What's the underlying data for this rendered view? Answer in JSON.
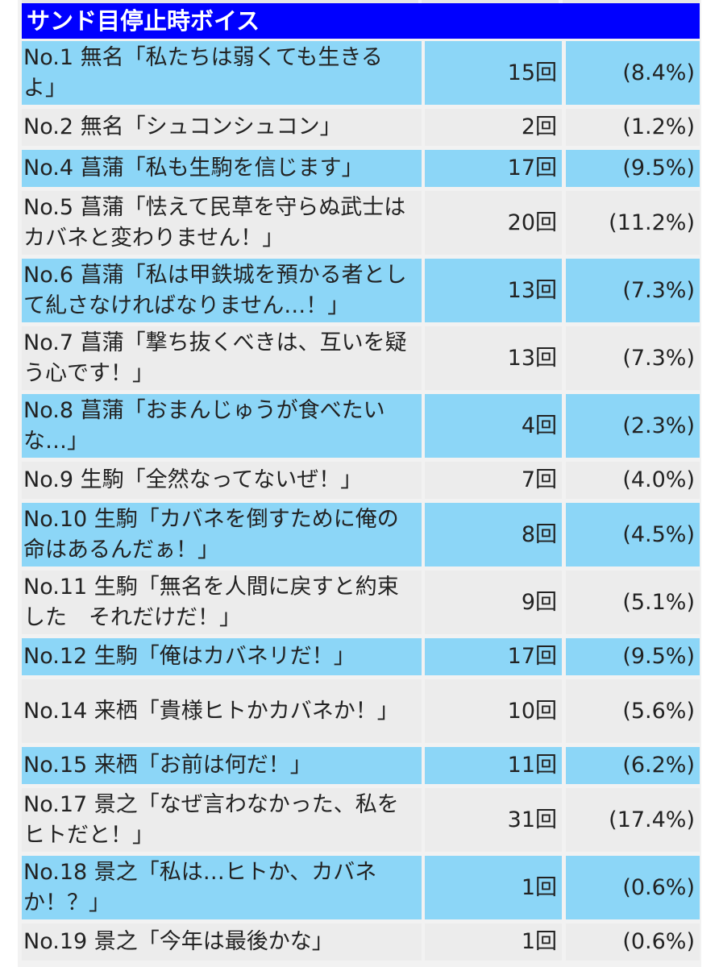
{
  "table": {
    "header": "サンド目停止時ボイス",
    "rows": [
      {
        "label": "No.1 無名「私たちは弱くても生きるよ」",
        "count": "15回",
        "pct": "(8.4%)",
        "lines": 2,
        "color": "#8cd6f7"
      },
      {
        "label": "No.2 無名「シュコンシュコン」",
        "count": "2回",
        "pct": "(1.2%)",
        "lines": 1,
        "color": "#ececec"
      },
      {
        "label": "No.4 菖蒲「私も生駒を信じます」",
        "count": "17回",
        "pct": "(9.5%)",
        "lines": 1,
        "color": "#8cd6f7"
      },
      {
        "label": "No.5 菖蒲「怯えて民草を守らぬ武士はカバネと変わりません！」",
        "count": "20回",
        "pct": "(11.2%)",
        "lines": 2,
        "color": "#ececec"
      },
      {
        "label": "No.6 菖蒲「私は甲鉄城を預かる者として糺さなければなりません…！」",
        "count": "13回",
        "pct": "(7.3%)",
        "lines": 2,
        "color": "#8cd6f7"
      },
      {
        "label": "No.7 菖蒲「撃ち抜くべきは、互いを疑う心です！」",
        "count": "13回",
        "pct": "(7.3%)",
        "lines": 2,
        "color": "#ececec"
      },
      {
        "label": "No.8 菖蒲「おまんじゅうが食べたいな…」",
        "count": "4回",
        "pct": "(2.3%)",
        "lines": 2,
        "color": "#8cd6f7"
      },
      {
        "label": "No.9 生駒「全然なってないぜ！」",
        "count": "7回",
        "pct": "(4.0%)",
        "lines": 1,
        "color": "#ececec"
      },
      {
        "label": "No.10 生駒「カバネを倒すために俺の命はあるんだぁ！」",
        "count": "8回",
        "pct": "(4.5%)",
        "lines": 2,
        "color": "#8cd6f7"
      },
      {
        "label": "No.11 生駒「無名を人間に戻すと約束した　それだけだ！」",
        "count": "9回",
        "pct": "(5.1%)",
        "lines": 2,
        "color": "#ececec"
      },
      {
        "label": "No.12 生駒「俺はカバネリだ！」",
        "count": "17回",
        "pct": "(9.5%)",
        "lines": 1,
        "color": "#8cd6f7"
      },
      {
        "label": "No.14 来栖「貴様ヒトかカバネか！」",
        "count": "10回",
        "pct": "(5.6%)",
        "lines": 2,
        "color": "#ececec"
      },
      {
        "label": "No.15 来栖「お前は何だ！」",
        "count": "11回",
        "pct": "(6.2%)",
        "lines": 1,
        "color": "#8cd6f7"
      },
      {
        "label": "No.17 景之「なぜ言わなかった、私をヒトだと！」",
        "count": "31回",
        "pct": "(17.4%)",
        "lines": 2,
        "color": "#ececec"
      },
      {
        "label": "No.18 景之「私は…ヒトか、カバネか！？」",
        "count": "1回",
        "pct": "(0.6%)",
        "lines": 2,
        "color": "#8cd6f7"
      },
      {
        "label": "No.19 景之「今年は最後かな」",
        "count": "1回",
        "pct": "(0.6%)",
        "lines": 1,
        "color": "#ececec"
      }
    ]
  }
}
